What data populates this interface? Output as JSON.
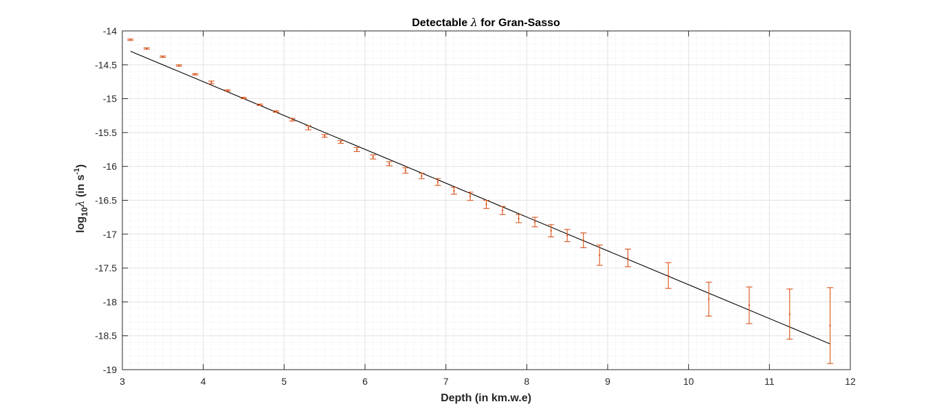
{
  "chart_data": {
    "type": "scatter",
    "title": {
      "before": "Detectable ",
      "symbol": "λ",
      "after": " for Gran-Sasso"
    },
    "xlabel": "Depth (in km.w.e)",
    "ylabel": {
      "log": "log",
      "sub": "10",
      "symbol": "λ",
      "unit": " (in s",
      "sup": "-1",
      "close": ")"
    },
    "xlim": [
      3,
      12
    ],
    "ylim": [
      -19,
      -14
    ],
    "xticks": [
      "3",
      "4",
      "5",
      "6",
      "7",
      "8",
      "9",
      "10",
      "11",
      "12"
    ],
    "yticks": [
      "-14",
      "-14.5",
      "-15",
      "-15.5",
      "-16",
      "-16.5",
      "-17",
      "-17.5",
      "-18",
      "-18.5",
      "-19"
    ],
    "grid": true,
    "minor_grid": true,
    "colors": {
      "points": "#d95319",
      "fit": "#000000",
      "grid": "#dcdcdc",
      "axes": "#262626"
    },
    "series": [
      {
        "style": "errorbar",
        "x": [
          3.1,
          3.3,
          3.5,
          3.7,
          3.9,
          4.1,
          4.3,
          4.5,
          4.7,
          4.9,
          5.1,
          5.3,
          5.5,
          5.7,
          5.9,
          6.1,
          6.3,
          6.5,
          6.7,
          6.9,
          7.1,
          7.3,
          7.5,
          7.7,
          7.9,
          8.1,
          8.3,
          8.5,
          8.7,
          8.9,
          9.25,
          9.75,
          10.25,
          10.75,
          11.25,
          11.75
        ],
        "y": [
          -14.13,
          -14.26,
          -14.38,
          -14.51,
          -14.64,
          -14.76,
          -14.88,
          -14.99,
          -15.09,
          -15.19,
          -15.31,
          -15.43,
          -15.55,
          -15.64,
          -15.75,
          -15.86,
          -15.96,
          -16.06,
          -16.14,
          -16.23,
          -16.36,
          -16.44,
          -16.56,
          -16.65,
          -16.77,
          -16.82,
          -16.95,
          -17.02,
          -17.09,
          -17.31,
          -17.35,
          -17.61,
          -17.96,
          -18.05,
          -18.18,
          -18.35
        ],
        "err": [
          0.01,
          0.01,
          0.01,
          0.01,
          0.01,
          0.02,
          0.01,
          0.01,
          0.01,
          0.01,
          0.02,
          0.03,
          0.02,
          0.02,
          0.03,
          0.03,
          0.03,
          0.04,
          0.04,
          0.05,
          0.05,
          0.06,
          0.06,
          0.06,
          0.06,
          0.07,
          0.09,
          0.09,
          0.11,
          0.15,
          0.13,
          0.19,
          0.25,
          0.27,
          0.37,
          0.56
        ]
      },
      {
        "style": "line",
        "x": [
          3.1,
          11.75
        ],
        "y": [
          -14.3,
          -18.62
        ]
      }
    ]
  }
}
